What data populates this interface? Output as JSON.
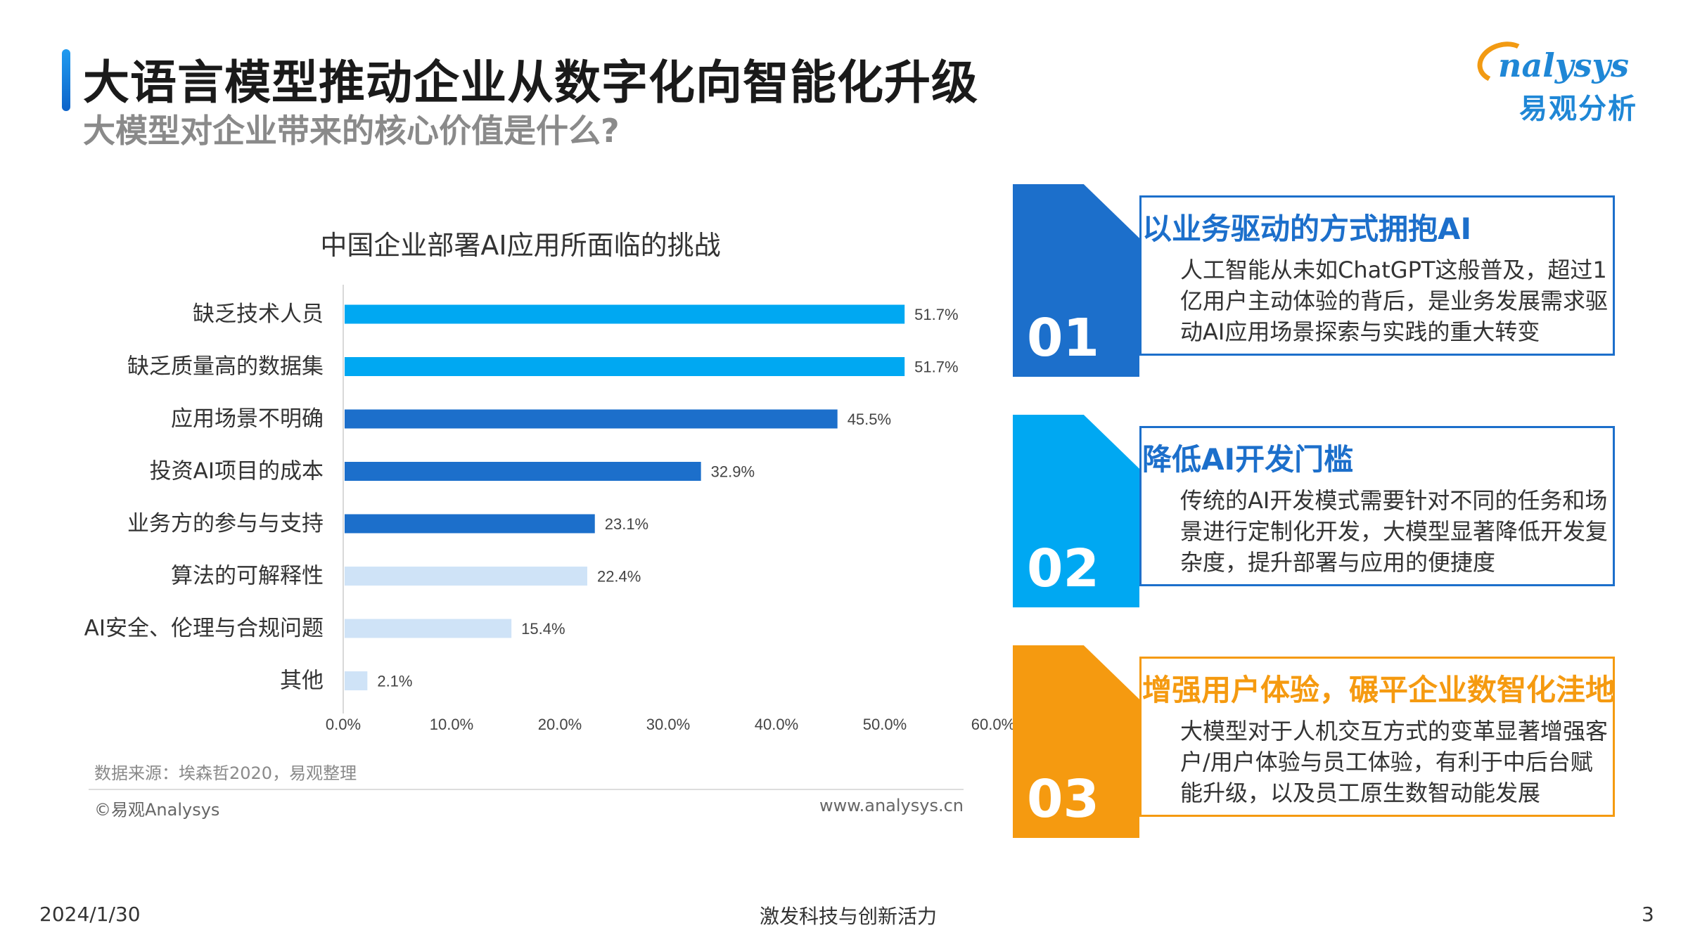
{
  "header": {
    "title": "大语言模型推动企业从数字化向智能化升级",
    "subtitle": "大模型对企业带来的核心价值是什么?"
  },
  "logo": {
    "en": "nalysys",
    "cn": "易观分析"
  },
  "chart_data": {
    "type": "bar",
    "orientation": "horizontal",
    "title": "中国企业部署AI应用所面临的挑战",
    "categories": [
      "缺乏技术人员",
      "缺乏质量高的数据集",
      "应用场景不明确",
      "投资AI项目的成本",
      "业务方的参与与支持",
      "算法的可解释性",
      "AI安全、伦理与合规问题",
      "其他"
    ],
    "values": [
      51.7,
      51.7,
      45.5,
      32.9,
      23.1,
      22.4,
      15.4,
      2.1
    ],
    "value_labels": [
      "51.7%",
      "51.7%",
      "45.5%",
      "32.9%",
      "23.1%",
      "22.4%",
      "15.4%",
      "2.1%"
    ],
    "bar_colors": [
      "#00a8f2",
      "#00a8f2",
      "#1c6fcb",
      "#1c6fcb",
      "#1c6fcb",
      "#cfe3f7",
      "#cfe3f7",
      "#cfe3f7"
    ],
    "xlim": [
      0,
      60
    ],
    "ticks": [
      0,
      10,
      20,
      30,
      40,
      50,
      60
    ],
    "tick_labels": [
      "0.0%",
      "10.0%",
      "20.0%",
      "30.0%",
      "40.0%",
      "50.0%",
      "60.0%"
    ],
    "xlabel": "",
    "ylabel": "",
    "grid": false
  },
  "chart_footer": {
    "source": "数据来源：埃森哲2020，易观整理",
    "copyright": "©易观Analysys",
    "website": "www.analysys.cn"
  },
  "cards": [
    {
      "number": "01",
      "heading": "以业务驱动的方式拥抱AI",
      "lines": [
        "人工智能从未如ChatGPT这般普及，超过1",
        "亿用户主动体验的背后，是业务发展需求驱",
        "动AI应用场景探索与实践的重大转变"
      ],
      "color": "#1c6fcb"
    },
    {
      "number": "02",
      "heading": "降低AI开发门槛",
      "lines": [
        "传统的AI开发模式需要针对不同的任务和场",
        "景进行定制化开发，大模型显著降低开发复",
        "杂度，提升部署与应用的便捷度"
      ],
      "color": "#00a8f2"
    },
    {
      "number": "03",
      "heading": "增强用户体验，碾平企业数智化洼地",
      "lines": [
        "大模型对于人机交互方式的变革显著增强客",
        "户/用户体验与员工体验，有利于中后台赋",
        "能升级，以及员工原生数智动能发展"
      ],
      "color": "#f59a10"
    }
  ],
  "footer": {
    "date": "2024/1/30",
    "slogan": "激发科技与创新活力",
    "page": "3"
  }
}
